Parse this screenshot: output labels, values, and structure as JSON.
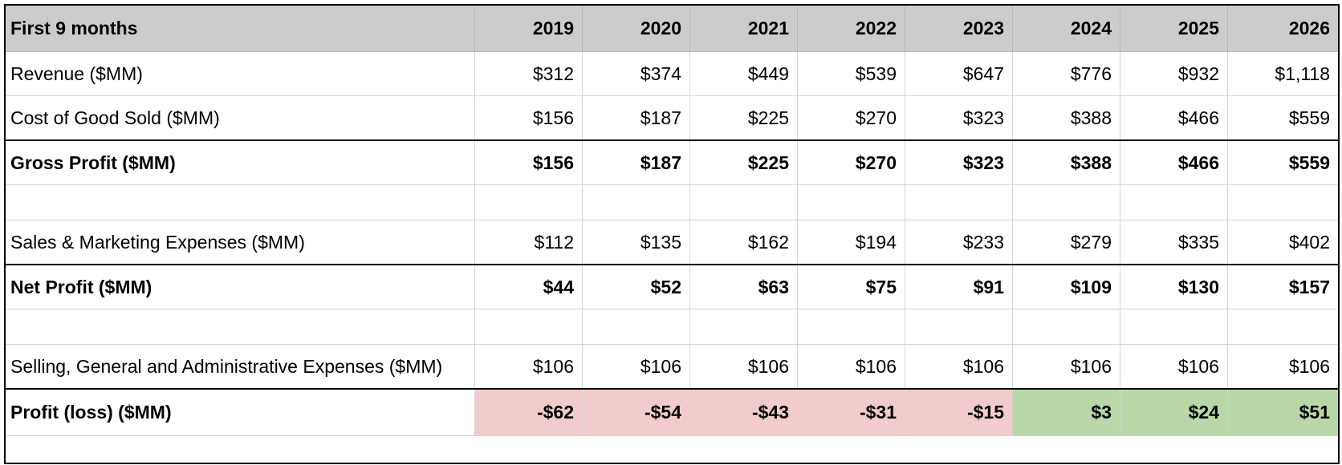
{
  "table": {
    "header": [
      "First 9 months",
      "2019",
      "2020",
      "2021",
      "2022",
      "2023",
      "2024",
      "2025",
      "2026"
    ],
    "rows": [
      {
        "label": "Revenue ($MM)",
        "values": [
          "$312",
          "$374",
          "$449",
          "$539",
          "$647",
          "$776",
          "$932",
          "$1,118"
        ]
      },
      {
        "label": "Cost of Good Sold ($MM)",
        "values": [
          "$156",
          "$187",
          "$225",
          "$270",
          "$323",
          "$388",
          "$466",
          "$559"
        ]
      },
      {
        "label": "Gross Profit ($MM)",
        "values": [
          "$156",
          "$187",
          "$225",
          "$270",
          "$323",
          "$388",
          "$466",
          "$559"
        ]
      },
      {
        "label": "",
        "values": [
          "",
          "",
          "",
          "",
          "",
          "",
          "",
          ""
        ]
      },
      {
        "label": "Sales & Marketing Expenses ($MM)",
        "values": [
          "$112",
          "$135",
          "$162",
          "$194",
          "$233",
          "$279",
          "$335",
          "$402"
        ]
      },
      {
        "label": "Net Profit ($MM)",
        "values": [
          "$44",
          "$52",
          "$63",
          "$75",
          "$91",
          "$109",
          "$130",
          "$157"
        ]
      },
      {
        "label": "",
        "values": [
          "",
          "",
          "",
          "",
          "",
          "",
          "",
          ""
        ]
      },
      {
        "label": "Selling, General and Administrative Expenses ($MM)",
        "values": [
          "$106",
          "$106",
          "$106",
          "$106",
          "$106",
          "$106",
          "$106",
          "$106"
        ]
      },
      {
        "label": "Profit (loss) ($MM)",
        "values": [
          "-$62",
          "-$54",
          "-$43",
          "-$31",
          "-$15",
          "$3",
          "$24",
          "$51"
        ]
      }
    ]
  },
  "colors": {
    "header_bg": "#cccccc",
    "loss_fill": "#f2cccc",
    "profit_fill": "#b9d7a8",
    "rule": "#000000"
  }
}
